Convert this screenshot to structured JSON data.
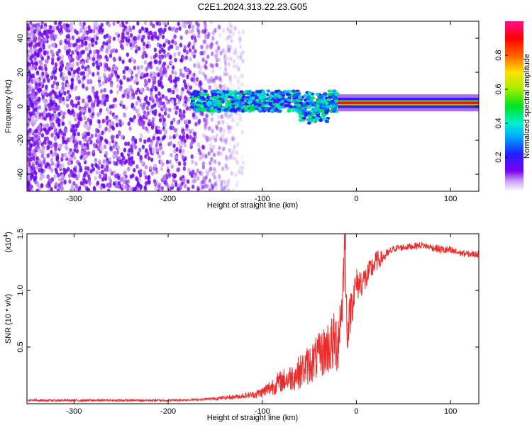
{
  "title": "C2E1.2024.313.22.23.G05",
  "chart_data": [
    {
      "type": "heatmap",
      "title": "C2E1.2024.313.22.23.G05",
      "xlabel": "Height of straight line (km)",
      "ylabel": "Frequency (Hz)",
      "xlim": [
        -350,
        130
      ],
      "ylim": [
        -50,
        50
      ],
      "x_ticks": [
        -300,
        -200,
        -100,
        0,
        100
      ],
      "y_ticks": [
        -40,
        -20,
        0,
        20,
        40
      ],
      "colorbar": {
        "label": "Normalized spectral amplitude",
        "range": [
          0,
          1
        ],
        "ticks": [
          0.2,
          0.4,
          0.6,
          0.8
        ],
        "tick_labels": [
          "0.2",
          "0.4",
          "0.6",
          "0.8"
        ]
      },
      "regions": [
        {
          "x": [
            -350,
            -120
          ],
          "description_level": 0.15,
          "freq_spread": [
            -50,
            50
          ]
        },
        {
          "x": [
            -175,
            -20
          ],
          "center_freq": 3,
          "level": 0.35
        },
        {
          "x": [
            -20,
            130
          ],
          "center_freq": 2,
          "level": 0.95
        }
      ],
      "grid": false
    },
    {
      "type": "line",
      "xlabel": "Height of straight line (km)",
      "ylabel": "SNR (10 * v/v)",
      "y_multiplier": "(x10",
      "y_multiplier_exp": "4",
      "y_multiplier_close": ")",
      "xlim": [
        -350,
        130
      ],
      "ylim": [
        0,
        1.5
      ],
      "x_ticks": [
        -300,
        -200,
        -100,
        0,
        100
      ],
      "y_ticks": [
        0.5,
        1.0,
        1.5
      ],
      "y_tick_labels": [
        "0.5",
        "1.0",
        "1.5"
      ],
      "series": [
        {
          "color": "#ee2a2a",
          "x": [
            -350,
            -300,
            -250,
            -200,
            -160,
            -130,
            -110,
            -100,
            -90,
            -80,
            -70,
            -60,
            -50,
            -40,
            -30,
            -20,
            -15,
            -12,
            -10,
            -5,
            0,
            10,
            20,
            30,
            40,
            50,
            60,
            70,
            80,
            90,
            100,
            110,
            120,
            130
          ],
          "values": [
            0.03,
            0.03,
            0.03,
            0.03,
            0.04,
            0.06,
            0.08,
            0.1,
            0.15,
            0.2,
            0.23,
            0.28,
            0.35,
            0.42,
            0.5,
            0.55,
            0.9,
            1.5,
            0.6,
            0.9,
            1.05,
            1.1,
            1.25,
            1.3,
            1.37,
            1.38,
            1.39,
            1.4,
            1.38,
            1.36,
            1.35,
            1.33,
            1.32,
            1.32
          ],
          "noise": [
            0.01,
            0.01,
            0.01,
            0.01,
            0.01,
            0.02,
            0.03,
            0.05,
            0.08,
            0.1,
            0.12,
            0.15,
            0.18,
            0.2,
            0.25,
            0.3,
            0.25,
            0.3,
            0.15,
            0.2,
            0.15,
            0.12,
            0.1,
            0.05,
            0.03,
            0.03,
            0.03,
            0.03,
            0.03,
            0.04,
            0.04,
            0.03,
            0.03,
            0.03
          ]
        }
      ],
      "grid": false
    }
  ]
}
